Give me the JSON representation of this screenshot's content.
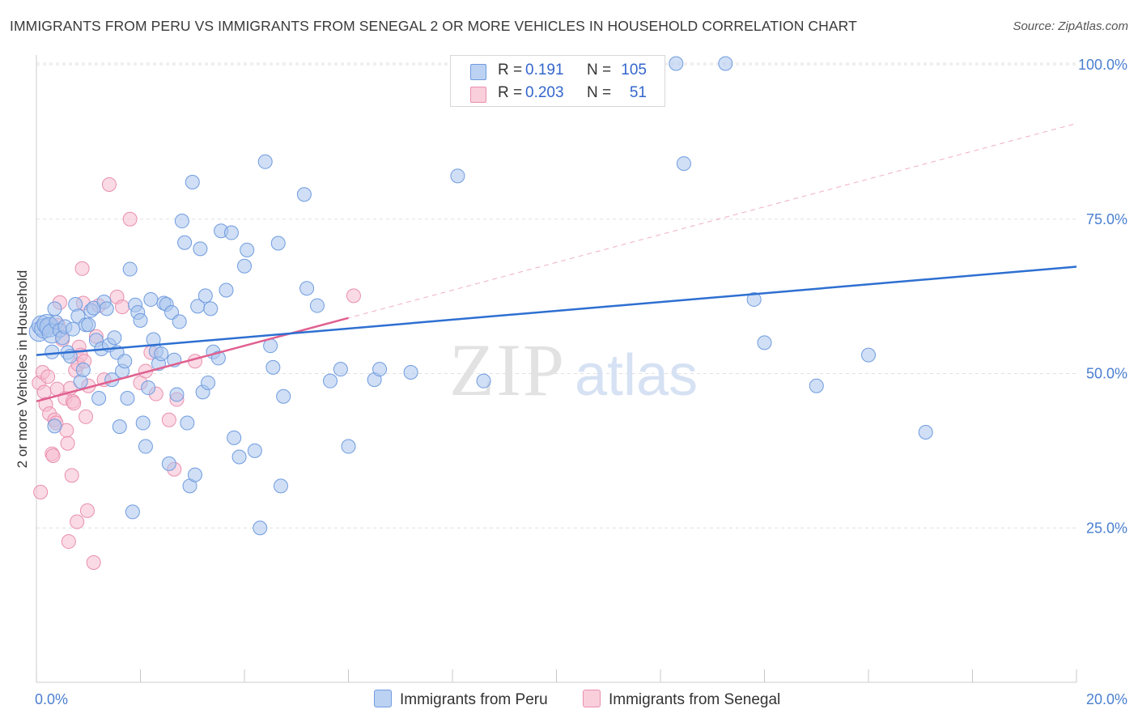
{
  "title": "IMMIGRANTS FROM PERU VS IMMIGRANTS FROM SENEGAL 2 OR MORE VEHICLES IN HOUSEHOLD CORRELATION CHART",
  "source": "Source: ZipAtlas.com",
  "legend_top": {
    "peru": {
      "r_label": "R =",
      "r_value": "0.191",
      "n_label": "N =",
      "n_value": "105"
    },
    "senegal": {
      "r_label": "R =",
      "r_value": "0.203",
      "n_label": "N =",
      "n_value": "51"
    }
  },
  "legend_bottom": {
    "peru": "Immigrants from Peru",
    "senegal": "Immigrants from Senegal"
  },
  "colors": {
    "peru_fill": "#a9c4ec",
    "peru_stroke": "#6f9be0",
    "peru_line": "#2e6fd1",
    "senegal_fill": "#f6bccf",
    "senegal_stroke": "#e98fae",
    "senegal_line": "#e0608f",
    "tick_label": "#4a7fd0",
    "grid": "#e0e0e0"
  },
  "watermark": {
    "zip": "ZIP",
    "atlas": "atlas"
  },
  "chart_data": {
    "type": "scatter",
    "xlabel": "",
    "ylabel": "2 or more Vehicles in Household",
    "xlim": [
      0,
      20
    ],
    "ylim": [
      0,
      102
    ],
    "x_tick_labels": [
      {
        "value": 0,
        "label": "0.0%"
      },
      {
        "value": 20,
        "label": "20.0%"
      }
    ],
    "y_tick_labels": [
      {
        "value": 25,
        "label": "25.0%"
      },
      {
        "value": 50,
        "label": "50.0%"
      },
      {
        "value": 75,
        "label": "75.0%"
      },
      {
        "value": 100,
        "label": "100.0%"
      }
    ],
    "grid": true,
    "legend_position": "top-center",
    "series": [
      {
        "name": "Immigrants from Peru",
        "r": 0.191,
        "n": 105,
        "trend": {
          "x": [
            0,
            20
          ],
          "y": [
            53.0,
            67.3
          ]
        },
        "points": [
          [
            0.05,
            56.8
          ],
          [
            0.1,
            57.8
          ],
          [
            0.15,
            57.3
          ],
          [
            0.2,
            58.0
          ],
          [
            0.25,
            57.5
          ],
          [
            0.3,
            56.5
          ],
          [
            0.35,
            60.5
          ],
          [
            0.3,
            53.5
          ],
          [
            0.38,
            58.3
          ],
          [
            0.45,
            57.0
          ],
          [
            0.5,
            55.8
          ],
          [
            0.55,
            57.6
          ],
          [
            0.6,
            53.4
          ],
          [
            0.65,
            52.8
          ],
          [
            0.7,
            57.2
          ],
          [
            0.75,
            61.2
          ],
          [
            0.8,
            59.3
          ],
          [
            0.85,
            48.7
          ],
          [
            0.9,
            50.6
          ],
          [
            0.95,
            57.9
          ],
          [
            1.0,
            57.9
          ],
          [
            1.05,
            60.2
          ],
          [
            1.1,
            60.6
          ],
          [
            1.15,
            55.4
          ],
          [
            1.2,
            46.0
          ],
          [
            1.25,
            54.0
          ],
          [
            1.3,
            61.6
          ],
          [
            1.35,
            60.5
          ],
          [
            1.4,
            54.6
          ],
          [
            1.45,
            49.0
          ],
          [
            1.5,
            55.8
          ],
          [
            1.55,
            53.4
          ],
          [
            1.6,
            41.4
          ],
          [
            1.65,
            50.4
          ],
          [
            1.7,
            52.0
          ],
          [
            1.75,
            46.0
          ],
          [
            1.8,
            66.9
          ],
          [
            1.85,
            27.6
          ],
          [
            1.9,
            61.1
          ],
          [
            1.95,
            59.9
          ],
          [
            2.0,
            58.6
          ],
          [
            2.05,
            42.0
          ],
          [
            2.1,
            38.2
          ],
          [
            2.15,
            47.7
          ],
          [
            2.2,
            62.0
          ],
          [
            2.25,
            55.5
          ],
          [
            2.3,
            53.6
          ],
          [
            2.35,
            51.6
          ],
          [
            2.4,
            53.2
          ],
          [
            2.45,
            61.4
          ],
          [
            2.5,
            61.2
          ],
          [
            2.55,
            35.4
          ],
          [
            2.6,
            59.9
          ],
          [
            2.65,
            52.2
          ],
          [
            2.7,
            46.6
          ],
          [
            2.75,
            58.4
          ],
          [
            2.8,
            74.7
          ],
          [
            2.85,
            71.2
          ],
          [
            2.9,
            42.0
          ],
          [
            2.95,
            31.8
          ],
          [
            3.0,
            81.0
          ],
          [
            3.05,
            33.6
          ],
          [
            3.1,
            60.9
          ],
          [
            3.15,
            70.2
          ],
          [
            3.2,
            47.0
          ],
          [
            3.25,
            62.6
          ],
          [
            3.3,
            48.5
          ],
          [
            3.35,
            60.5
          ],
          [
            3.4,
            53.5
          ],
          [
            3.5,
            52.5
          ],
          [
            3.55,
            73.1
          ],
          [
            3.65,
            63.5
          ],
          [
            3.75,
            72.8
          ],
          [
            3.8,
            39.6
          ],
          [
            3.9,
            36.5
          ],
          [
            4.0,
            67.4
          ],
          [
            4.05,
            70.0
          ],
          [
            4.2,
            37.5
          ],
          [
            4.3,
            25.0
          ],
          [
            4.4,
            84.3
          ],
          [
            4.5,
            54.5
          ],
          [
            4.55,
            51.0
          ],
          [
            4.65,
            71.1
          ],
          [
            4.7,
            31.8
          ],
          [
            4.75,
            46.3
          ],
          [
            5.15,
            79.0
          ],
          [
            5.2,
            63.8
          ],
          [
            5.4,
            61.0
          ],
          [
            5.65,
            48.8
          ],
          [
            5.85,
            50.7
          ],
          [
            6.0,
            38.2
          ],
          [
            6.5,
            49.0
          ],
          [
            6.6,
            50.7
          ],
          [
            7.2,
            50.2
          ],
          [
            8.1,
            82.0
          ],
          [
            8.6,
            48.8
          ],
          [
            12.3,
            100.2
          ],
          [
            12.45,
            84.0
          ],
          [
            13.25,
            100.2
          ],
          [
            13.8,
            62.0
          ],
          [
            14.0,
            55.0
          ],
          [
            15.0,
            48.0
          ],
          [
            16.0,
            53.0
          ],
          [
            17.1,
            40.5
          ],
          [
            0.35,
            41.5
          ]
        ]
      },
      {
        "name": "Immigrants from Senegal",
        "r": 0.203,
        "n": 51,
        "trend": {
          "x": [
            0,
            6.0
          ],
          "y": [
            45.5,
            59.0
          ]
        },
        "trend_extended": {
          "x": [
            0,
            20
          ],
          "y": [
            45.5,
            90.5
          ]
        },
        "points": [
          [
            0.05,
            48.5
          ],
          [
            0.08,
            30.8
          ],
          [
            0.12,
            50.2
          ],
          [
            0.15,
            47.0
          ],
          [
            0.18,
            45.0
          ],
          [
            0.22,
            49.5
          ],
          [
            0.25,
            43.5
          ],
          [
            0.3,
            37.0
          ],
          [
            0.32,
            36.7
          ],
          [
            0.35,
            42.5
          ],
          [
            0.38,
            42.0
          ],
          [
            0.42,
            57.8
          ],
          [
            0.45,
            61.5
          ],
          [
            0.5,
            55.5
          ],
          [
            0.55,
            46.0
          ],
          [
            0.58,
            40.8
          ],
          [
            0.6,
            38.7
          ],
          [
            0.62,
            22.8
          ],
          [
            0.65,
            47.6
          ],
          [
            0.68,
            33.5
          ],
          [
            0.7,
            45.5
          ],
          [
            0.72,
            45.2
          ],
          [
            0.75,
            50.5
          ],
          [
            0.78,
            26.0
          ],
          [
            0.8,
            51.5
          ],
          [
            0.82,
            54.3
          ],
          [
            0.85,
            53.0
          ],
          [
            0.88,
            67.0
          ],
          [
            0.9,
            61.4
          ],
          [
            0.92,
            52.0
          ],
          [
            0.95,
            43.0
          ],
          [
            0.98,
            27.8
          ],
          [
            1.0,
            48.0
          ],
          [
            1.1,
            19.4
          ],
          [
            1.15,
            56.0
          ],
          [
            1.2,
            61.0
          ],
          [
            1.3,
            49.0
          ],
          [
            1.4,
            80.6
          ],
          [
            1.55,
            62.4
          ],
          [
            1.65,
            60.8
          ],
          [
            1.8,
            75.0
          ],
          [
            2.0,
            48.5
          ],
          [
            2.1,
            50.4
          ],
          [
            2.2,
            53.4
          ],
          [
            2.3,
            46.7
          ],
          [
            2.55,
            42.5
          ],
          [
            2.65,
            34.5
          ],
          [
            2.7,
            45.8
          ],
          [
            3.05,
            52.0
          ],
          [
            6.1,
            62.6
          ],
          [
            0.4,
            47.5
          ]
        ]
      }
    ]
  }
}
